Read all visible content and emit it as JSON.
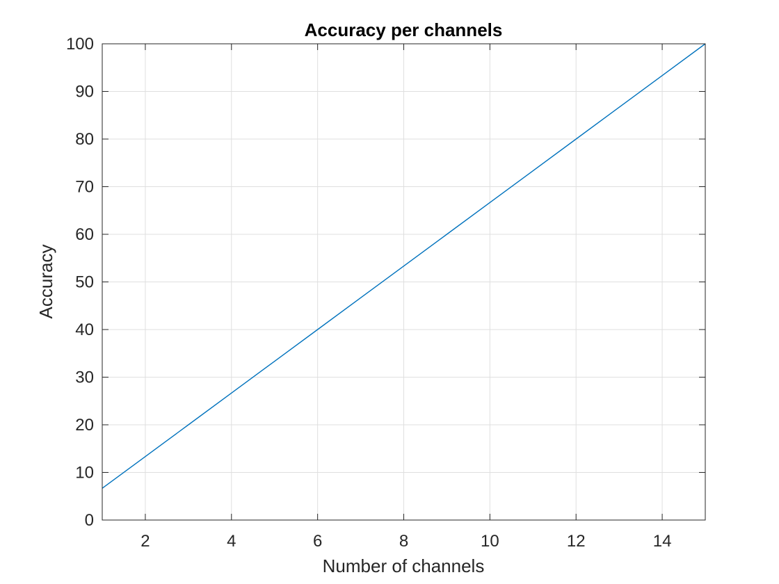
{
  "chart_data": {
    "type": "line",
    "title": "Accuracy per channels",
    "xlabel": "Number of channels",
    "ylabel": "Accuracy",
    "xlim": [
      1,
      15
    ],
    "ylim": [
      0,
      100
    ],
    "xticks": [
      2,
      4,
      6,
      8,
      10,
      12,
      14
    ],
    "yticks": [
      0,
      10,
      20,
      30,
      40,
      50,
      60,
      70,
      80,
      90,
      100
    ],
    "grid": true,
    "legend": "none",
    "series": [
      {
        "color": "#0072BD",
        "x": [
          1,
          2,
          3,
          4,
          5,
          6,
          7,
          8,
          9,
          10,
          11,
          12,
          13,
          14,
          15
        ],
        "y": [
          6.67,
          13.33,
          20,
          26.67,
          33.33,
          40,
          46.67,
          53.33,
          60,
          66.67,
          73.33,
          80,
          86.67,
          93.33,
          100
        ]
      }
    ]
  }
}
